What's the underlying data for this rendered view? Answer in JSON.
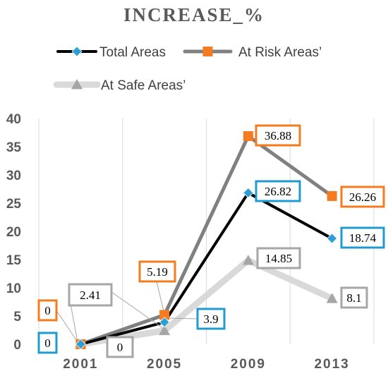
{
  "chart_data": {
    "type": "line",
    "title": "INCREASE_%",
    "categories": [
      "2001",
      "2005",
      "2009",
      "2013"
    ],
    "ylim": [
      0,
      40
    ],
    "yticks": [
      0,
      5,
      10,
      15,
      20,
      25,
      30,
      35,
      40
    ],
    "grid": "vertical",
    "legend_position": "top",
    "series": [
      {
        "name": "Total Areas",
        "values": [
          0,
          3.9,
          26.82,
          18.74
        ],
        "labels": [
          "0",
          "3.9",
          "26.82",
          "18.74"
        ],
        "line_color": "#000000",
        "marker_color": "#2e9fd6",
        "marker": "diamond",
        "label_border": "#1f9bd1"
      },
      {
        "name": "At Risk Areas’",
        "values": [
          0,
          5.19,
          36.88,
          26.26
        ],
        "labels": [
          "0",
          "5.19",
          "36.88",
          "26.26"
        ],
        "line_color": "#808080",
        "marker_color": "#f47b20",
        "marker": "square",
        "label_border": "#f47b20"
      },
      {
        "name": "At Safe Areas’",
        "values": [
          0,
          2.41,
          14.85,
          8.1
        ],
        "labels": [
          "0",
          "2.41",
          "14.85",
          "8.1"
        ],
        "line_color": "#d9d9d9",
        "marker_color": "#a6a6a6",
        "marker": "triangle",
        "label_border": "#a6a6a6"
      }
    ]
  }
}
